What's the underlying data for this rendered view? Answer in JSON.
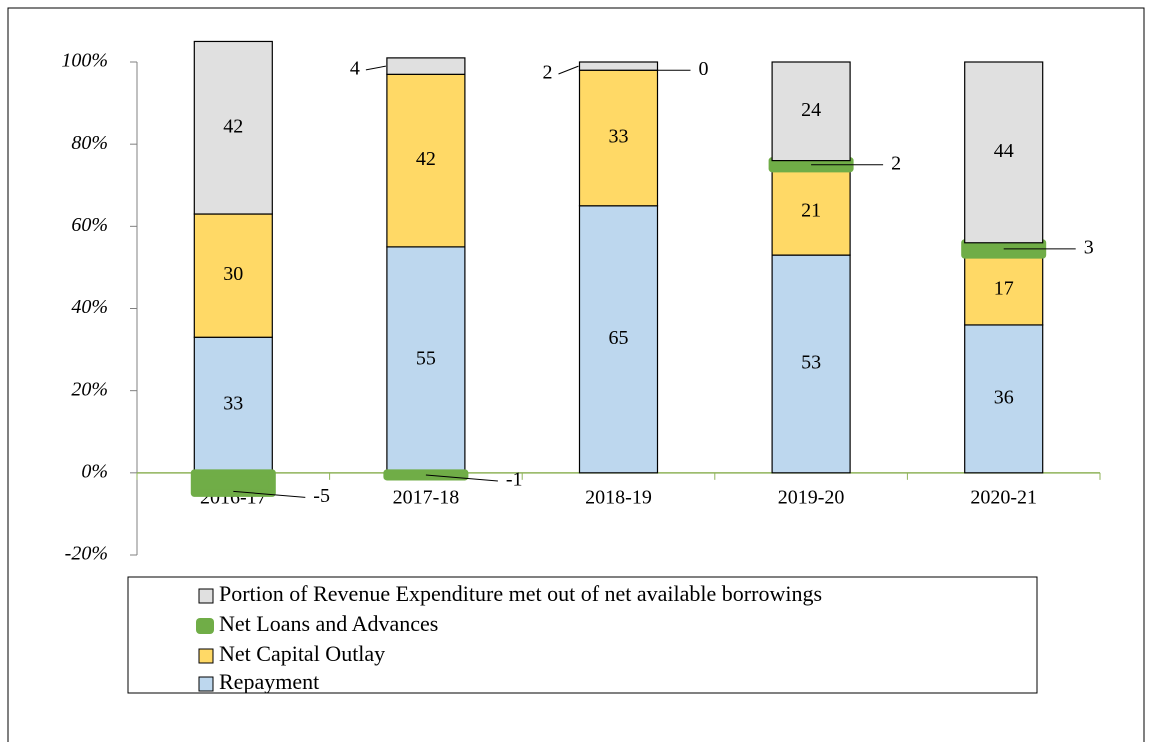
{
  "chart_data": {
    "type": "stacked_bar",
    "categories": [
      "2016-17",
      "2017-18",
      "2018-19",
      "2019-20",
      "2020-21"
    ],
    "series": [
      {
        "name": "Repayment",
        "color": "#bdd7ee",
        "values": [
          33,
          55,
          65,
          53,
          36
        ]
      },
      {
        "name": "Net Capital Outlay",
        "color": "#ffd966",
        "values": [
          30,
          42,
          33,
          21,
          17
        ]
      },
      {
        "name": "Net Loans and Advances",
        "color": "#70ad47",
        "values": [
          -5,
          -1,
          0,
          2,
          3
        ]
      },
      {
        "name": "Portion of Revenue Expenditure met out of net available borrowings",
        "color": "#e0e0e0",
        "values": [
          42,
          4,
          2,
          24,
          44
        ]
      }
    ],
    "ylim": [
      -20,
      100
    ],
    "yticks": [
      {
        "value": -20,
        "label": "-20%"
      },
      {
        "value": 0,
        "label": "0%"
      },
      {
        "value": 20,
        "label": "20%"
      },
      {
        "value": 40,
        "label": "40%"
      },
      {
        "value": 60,
        "label": "60%"
      },
      {
        "value": 80,
        "label": "80%"
      },
      {
        "value": 100,
        "label": "100%"
      }
    ],
    "legend": "bottom"
  }
}
